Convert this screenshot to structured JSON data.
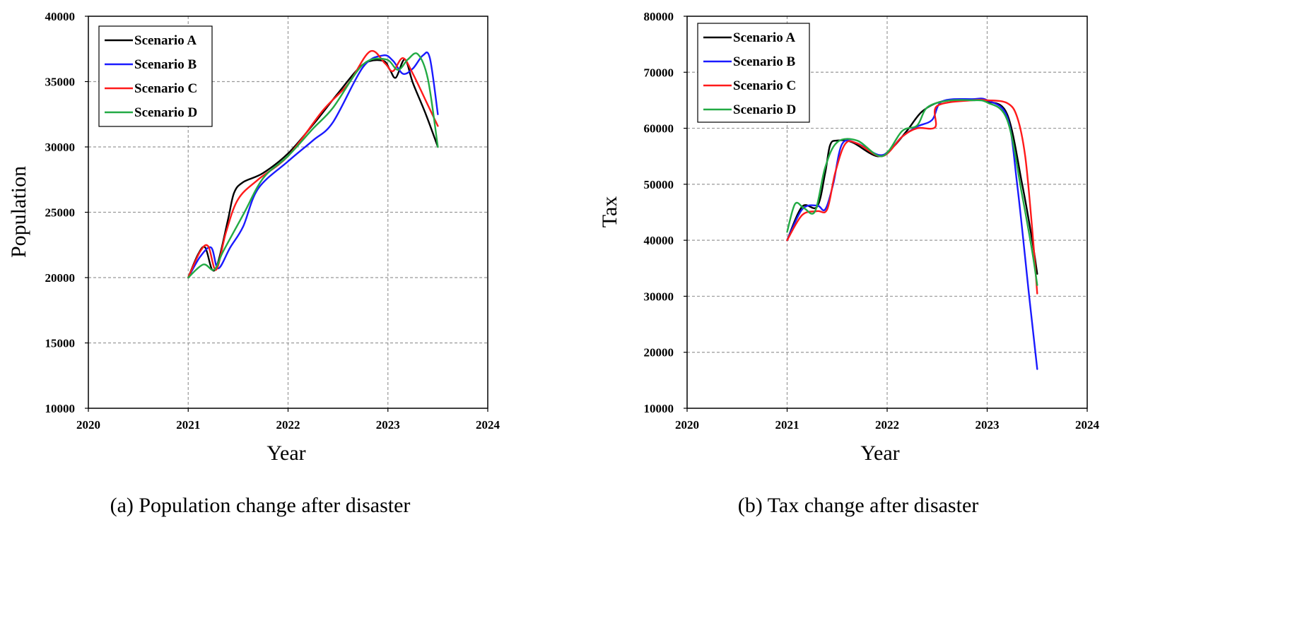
{
  "chart_data": [
    {
      "type": "line",
      "panel": "a",
      "caption": "(a) Population change after disaster",
      "xlabel": "Year",
      "ylabel": "Population",
      "xlim": [
        2020,
        2024
      ],
      "ylim": [
        10000,
        40000
      ],
      "xticks": [
        "2020",
        "2021",
        "2022",
        "2023",
        "2024"
      ],
      "yticks": [
        "10000",
        "15000",
        "20000",
        "25000",
        "30000",
        "35000",
        "40000"
      ],
      "grid": true,
      "legend_position": "top-left",
      "series": [
        {
          "name": "Scenario A",
          "color": "#000000",
          "x": [
            2021.0,
            2021.1,
            2021.17,
            2021.24,
            2021.3,
            2021.4,
            2021.46,
            2021.55,
            2021.75,
            2022.0,
            2022.25,
            2022.5,
            2022.75,
            2022.95,
            2023.02,
            2023.08,
            2023.17,
            2023.25,
            2023.38,
            2023.5
          ],
          "y": [
            20000,
            21800,
            22300,
            20600,
            21200,
            24500,
            26500,
            27300,
            28000,
            29500,
            31700,
            34100,
            36300,
            36600,
            35900,
            35300,
            36700,
            34900,
            32500,
            30000
          ]
        },
        {
          "name": "Scenario B",
          "color": "#1a1aff",
          "x": [
            2021.0,
            2021.12,
            2021.23,
            2021.3,
            2021.42,
            2021.55,
            2021.7,
            2022.0,
            2022.25,
            2022.45,
            2022.75,
            2022.95,
            2023.05,
            2023.15,
            2023.25,
            2023.35,
            2023.42,
            2023.5
          ],
          "y": [
            20000,
            21600,
            22300,
            20700,
            22300,
            23900,
            26800,
            28900,
            30500,
            31900,
            36100,
            37000,
            36600,
            35600,
            36000,
            37000,
            36800,
            32500
          ]
        },
        {
          "name": "Scenario C",
          "color": "#ff1a1a",
          "x": [
            2021.0,
            2021.12,
            2021.2,
            2021.28,
            2021.38,
            2021.5,
            2021.7,
            2022.0,
            2022.35,
            2022.6,
            2022.82,
            2022.97,
            2023.05,
            2023.15,
            2023.25,
            2023.4,
            2023.5
          ],
          "y": [
            20000,
            22000,
            22400,
            20600,
            23500,
            26000,
            27500,
            29300,
            32800,
            34800,
            37300,
            36400,
            35800,
            36800,
            35600,
            33200,
            31600
          ]
        },
        {
          "name": "Scenario D",
          "color": "#22aa44",
          "x": [
            2021.0,
            2021.15,
            2021.26,
            2021.35,
            2021.55,
            2021.75,
            2022.0,
            2022.25,
            2022.45,
            2022.75,
            2022.98,
            2023.1,
            2023.2,
            2023.3,
            2023.4,
            2023.5
          ],
          "y": [
            20000,
            21000,
            20600,
            22000,
            24800,
            27600,
            29300,
            31400,
            33000,
            36300,
            36700,
            35900,
            36700,
            37100,
            35200,
            30000
          ]
        }
      ]
    },
    {
      "type": "line",
      "panel": "b",
      "caption": "(b) Tax change after disaster",
      "xlabel": "Year",
      "ylabel": "Tax",
      "xlim": [
        2020,
        2024
      ],
      "ylim": [
        10000,
        80000
      ],
      "xticks": [
        "2020",
        "2021",
        "2022",
        "2023",
        "2024"
      ],
      "yticks": [
        "10000",
        "20000",
        "30000",
        "40000",
        "50000",
        "60000",
        "70000",
        "80000"
      ],
      "grid": true,
      "legend_position": "top-left",
      "series": [
        {
          "name": "Scenario A",
          "color": "#000000",
          "x": [
            2021.0,
            2021.15,
            2021.3,
            2021.38,
            2021.43,
            2021.5,
            2021.65,
            2021.9,
            2022.05,
            2022.2,
            2022.35,
            2022.55,
            2022.85,
            2023.0,
            2023.2,
            2023.35,
            2023.45,
            2023.5
          ],
          "y": [
            40000,
            46000,
            46000,
            52000,
            57000,
            57800,
            57500,
            55000,
            56500,
            59600,
            63000,
            64800,
            65000,
            64800,
            62500,
            50000,
            40000,
            34000
          ]
        },
        {
          "name": "Scenario B",
          "color": "#1a1aff",
          "x": [
            2021.0,
            2021.15,
            2021.3,
            2021.38,
            2021.46,
            2021.55,
            2021.7,
            2021.95,
            2022.15,
            2022.3,
            2022.45,
            2022.55,
            2022.85,
            2023.0,
            2023.2,
            2023.3,
            2023.42,
            2023.5
          ],
          "y": [
            40000,
            45500,
            46200,
            45500,
            50000,
            57200,
            57300,
            55200,
            58500,
            60300,
            61500,
            64800,
            65200,
            65000,
            62000,
            50000,
            30000,
            17000
          ]
        },
        {
          "name": "Scenario C",
          "color": "#ff1a1a",
          "x": [
            2021.0,
            2021.15,
            2021.3,
            2021.4,
            2021.48,
            2021.58,
            2021.7,
            2021.95,
            2022.15,
            2022.3,
            2022.48,
            2022.5,
            2022.85,
            2023.0,
            2023.2,
            2023.3,
            2023.38,
            2023.45,
            2023.5
          ],
          "y": [
            40000,
            44500,
            45200,
            45500,
            52000,
            57200,
            57300,
            55000,
            58500,
            60000,
            60200,
            64000,
            65000,
            65000,
            64500,
            62000,
            55000,
            42000,
            30500
          ]
        },
        {
          "name": "Scenario D",
          "color": "#22aa44",
          "x": [
            2021.0,
            2021.08,
            2021.17,
            2021.28,
            2021.38,
            2021.5,
            2021.7,
            2021.95,
            2022.15,
            2022.3,
            2022.4,
            2022.6,
            2022.85,
            2023.0,
            2023.2,
            2023.35,
            2023.45,
            2023.5
          ],
          "y": [
            41500,
            46500,
            45700,
            45200,
            53000,
            57500,
            57800,
            55000,
            59500,
            60500,
            63700,
            64900,
            65000,
            64600,
            61500,
            48000,
            38000,
            32000
          ]
        }
      ]
    }
  ]
}
